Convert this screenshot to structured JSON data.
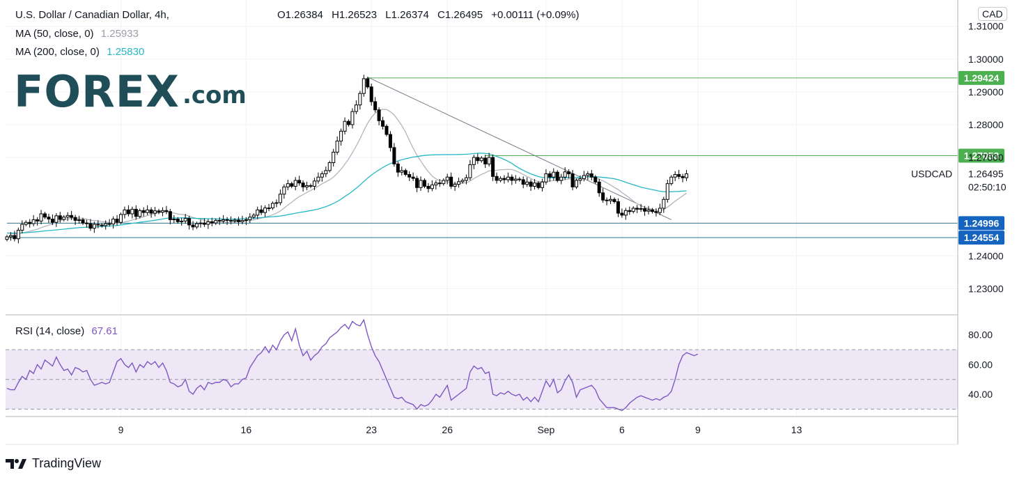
{
  "header": {
    "symbol_title": "U.S. Dollar / Canadian Dollar, 4h,",
    "open": "O1.26384",
    "high": "H1.26523",
    "low": "L1.26374",
    "close": "C1.26495",
    "change": "+0.00111 (+0.09%)",
    "ma50_label": "MA (50, close, 0)",
    "ma50_value": "1.25933",
    "ma200_label": "MA (200, close, 0)",
    "ma200_value": "1.25830",
    "currency_badge": "CAD",
    "rsi_label": "RSI (14, close)",
    "rsi_value": "67.61"
  },
  "logo": {
    "main": "FOREX",
    "suffix": ".com"
  },
  "brand": {
    "name": "TradingView"
  },
  "colors": {
    "up": "#ffffff",
    "down": "#000000",
    "ma50": "#b2b5be",
    "ma200": "#26b8c6",
    "green_level": "#4caf50",
    "teal_level": "#2a7a8c",
    "rsi": "#7e57c2",
    "rsi_band": "#ede7f6"
  },
  "chart_data": [
    {
      "type": "candlestick",
      "title": "USDCAD 4h",
      "symbol": "USDCAD",
      "last_price": "1.26495",
      "countdown": "02:50:10",
      "ylim": [
        1.222,
        1.318
      ],
      "y_ticks": [
        1.31,
        1.3,
        1.29,
        1.28,
        1.27,
        1.24,
        1.23
      ],
      "y_tick_labels": [
        "1.31000",
        "1.30000",
        "1.29000",
        "1.28000",
        "1.27000",
        "1.24000",
        "1.23000"
      ],
      "x_ticks": [
        {
          "i": 30,
          "label": "9"
        },
        {
          "i": 63,
          "label": "16"
        },
        {
          "i": 96,
          "label": "23"
        },
        {
          "i": 116,
          "label": "26"
        },
        {
          "i": 142,
          "label": "Sep"
        },
        {
          "i": 162,
          "label": "6"
        },
        {
          "i": 182,
          "label": "9"
        },
        {
          "i": 208,
          "label": "13"
        }
      ],
      "levels": [
        {
          "value": 1.29424,
          "label": "1.29424",
          "color": "green",
          "from_i": 95
        },
        {
          "value": 1.27053,
          "label": "1.27053",
          "color": "green",
          "from_i": 126
        },
        {
          "value": 1.24996,
          "label": "1.24996",
          "color": "teal",
          "from_i": 0
        },
        {
          "value": 1.24554,
          "label": "1.24554",
          "color": "teal",
          "from_i": 0
        }
      ],
      "trendline": {
        "from": {
          "i": 95,
          "v": 1.2945
        },
        "to": {
          "i": 175,
          "v": 1.251
        }
      },
      "closes": [
        1.2458,
        1.2462,
        1.2452,
        1.2478,
        1.2496,
        1.2502,
        1.2498,
        1.251,
        1.2506,
        1.2528,
        1.2518,
        1.2512,
        1.2502,
        1.2522,
        1.2511,
        1.2518,
        1.2523,
        1.2517,
        1.2508,
        1.251,
        1.25,
        1.2498,
        1.2484,
        1.2496,
        1.2494,
        1.2492,
        1.2498,
        1.2497,
        1.2512,
        1.2502,
        1.2526,
        1.254,
        1.2528,
        1.2542,
        1.252,
        1.2538,
        1.2532,
        1.254,
        1.253,
        1.2537,
        1.2533,
        1.2538,
        1.2535,
        1.251,
        1.2512,
        1.2504,
        1.2506,
        1.2514,
        1.2494,
        1.2488,
        1.2498,
        1.25,
        1.2496,
        1.2504,
        1.25,
        1.2508,
        1.2506,
        1.251,
        1.2508,
        1.2506,
        1.2509,
        1.2504,
        1.2508,
        1.251,
        1.2518,
        1.2524,
        1.254,
        1.2532,
        1.2546,
        1.2546,
        1.256,
        1.2562,
        1.2588,
        1.261,
        1.262,
        1.2612,
        1.263,
        1.2622,
        1.261,
        1.2614,
        1.2612,
        1.2628,
        1.264,
        1.265,
        1.266,
        1.2684,
        1.2716,
        1.275,
        1.278,
        1.281,
        1.28,
        1.284,
        1.286,
        1.2895,
        1.294,
        1.2915,
        1.287,
        1.2845,
        1.2812,
        1.2795,
        1.277,
        1.273,
        1.268,
        1.2655,
        1.266,
        1.2648,
        1.264,
        1.2636,
        1.2608,
        1.263,
        1.2612,
        1.2605,
        1.2616,
        1.2622,
        1.262,
        1.263,
        1.264,
        1.2612,
        1.2618,
        1.2626,
        1.263,
        1.2638,
        1.2678,
        1.27,
        1.269,
        1.2698,
        1.268,
        1.27,
        1.2642,
        1.263,
        1.2636,
        1.2632,
        1.264,
        1.263,
        1.2634,
        1.2632,
        1.2618,
        1.2625,
        1.2612,
        1.2622,
        1.2608,
        1.2625,
        1.265,
        1.264,
        1.2655,
        1.263,
        1.264,
        1.2656,
        1.265,
        1.261,
        1.263,
        1.2635,
        1.2645,
        1.265,
        1.264,
        1.2625,
        1.2592,
        1.257,
        1.2568,
        1.2572,
        1.2565,
        1.253,
        1.2524,
        1.2538,
        1.2535,
        1.2545,
        1.2542,
        1.2544,
        1.2536,
        1.254,
        1.2535,
        1.2532,
        1.2545,
        1.2572,
        1.262,
        1.264,
        1.2648,
        1.2642,
        1.2638,
        1.265
      ]
    },
    {
      "type": "line",
      "title": "RSI (14, close)",
      "ylim": [
        25,
        93
      ],
      "y_ticks": [
        80,
        60,
        40
      ],
      "y_tick_labels": [
        "80.00",
        "60.00",
        "40.00"
      ],
      "band": [
        30,
        70
      ],
      "midline": 50,
      "values": [
        44,
        43,
        43,
        48,
        52,
        50,
        56,
        54,
        60,
        57,
        63,
        61,
        59,
        65,
        60,
        56,
        57,
        53,
        58,
        57,
        55,
        56,
        50,
        46,
        47,
        48,
        47,
        48,
        55,
        62,
        64,
        60,
        58,
        61,
        55,
        60,
        58,
        62,
        60,
        62,
        58,
        61,
        56,
        48,
        47,
        45,
        46,
        50,
        42,
        40,
        44,
        46,
        43,
        48,
        47,
        48,
        48,
        50,
        49,
        45,
        47,
        47,
        50,
        51,
        58,
        62,
        66,
        68,
        72,
        68,
        73,
        70,
        76,
        80,
        82,
        76,
        84,
        73,
        66,
        69,
        63,
        66,
        68,
        72,
        74,
        78,
        80,
        82,
        85,
        87,
        84,
        89,
        87,
        86,
        90,
        80,
        72,
        66,
        62,
        56,
        50,
        44,
        38,
        37,
        38,
        35,
        34,
        33,
        30,
        33,
        32,
        33,
        36,
        40,
        38,
        42,
        46,
        36,
        38,
        40,
        42,
        44,
        55,
        59,
        57,
        58,
        54,
        55,
        40,
        39,
        41,
        40,
        42,
        40,
        39,
        40,
        36,
        38,
        35,
        38,
        35,
        42,
        49,
        45,
        50,
        41,
        43,
        49,
        53,
        48,
        38,
        43,
        44,
        45,
        46,
        43,
        37,
        34,
        31,
        31,
        31,
        30,
        29,
        31,
        34,
        36,
        38,
        39,
        38,
        37,
        36,
        37,
        36,
        38,
        39,
        42,
        50,
        60,
        66,
        68,
        67,
        66,
        67
      ]
    }
  ]
}
